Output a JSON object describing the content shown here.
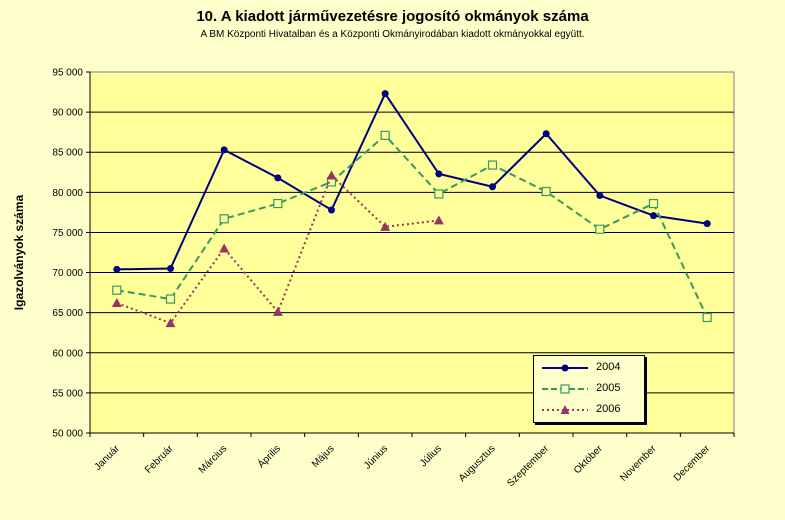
{
  "chart_data": {
    "type": "line",
    "title": "10. A  kiadott járművezetésre  jogosító okmányok száma",
    "subtitle": "A BM Központi Hivatalban és a Központi Okmányirodában kiadott okmányokkal együtt.",
    "xlabel": "",
    "ylabel": "Igazolványok száma",
    "categories": [
      "Január",
      "Február",
      "Március",
      "Április",
      "Május",
      "Június",
      "Július",
      "Augusztus",
      "Szeptember",
      "Október",
      "November",
      "December"
    ],
    "y_tick_labels": [
      "50 000",
      "55 000",
      "60 000",
      "65 000",
      "70 000",
      "75 000",
      "80 000",
      "85 000",
      "90 000",
      "95 000"
    ],
    "ylim": [
      50000,
      95000
    ],
    "grid": true,
    "legend_position": "bottom-right",
    "series": [
      {
        "name": "2004",
        "color": "#000080",
        "marker": "filled-circle",
        "dash": "solid",
        "values": [
          70400,
          70500,
          85300,
          81800,
          77800,
          92300,
          82300,
          80700,
          87300,
          79600,
          77100,
          76100
        ]
      },
      {
        "name": "2005",
        "color": "#339966",
        "marker": "hollow-square",
        "dash": "dashed",
        "values": [
          67800,
          66700,
          76700,
          78600,
          81300,
          87100,
          79800,
          83400,
          80100,
          75400,
          78600,
          64400
        ]
      },
      {
        "name": "2006",
        "color": "#993366",
        "marker": "triangle",
        "dash": "dotted",
        "values": [
          66200,
          63700,
          73000,
          65100,
          82100,
          75700,
          76500,
          null,
          null,
          null,
          null,
          null
        ]
      }
    ]
  }
}
